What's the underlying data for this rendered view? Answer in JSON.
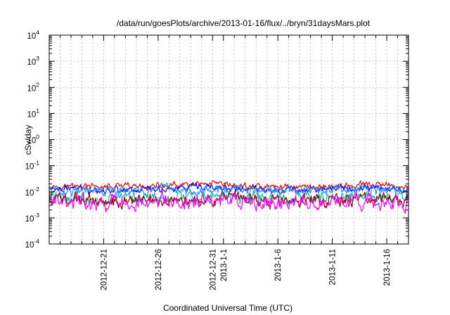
{
  "chart_data": {
    "type": "line",
    "title": "/data/run/goesPlots/archive/2013-01-16/flux/../bryn/31daysMars.plot",
    "xlabel": "Coordinated Universal Time (UTC)",
    "ylabel": "cSv/day",
    "yscale": "log",
    "ylim": [
      0.0001,
      10000
    ],
    "y_ticks": [
      {
        "base": "10",
        "exp": "-4"
      },
      {
        "base": "10",
        "exp": "-3"
      },
      {
        "base": "10",
        "exp": "-2"
      },
      {
        "base": "10",
        "exp": "-1"
      },
      {
        "base": "10",
        "exp": "0"
      },
      {
        "base": "10",
        "exp": "1"
      },
      {
        "base": "10",
        "exp": "2"
      },
      {
        "base": "10",
        "exp": "3"
      },
      {
        "base": "10",
        "exp": "4"
      }
    ],
    "xlim": [
      "2012-12-16",
      "2013-01-18"
    ],
    "x_ticks": [
      {
        "date": "2012-12-21",
        "label": "2012-12-21"
      },
      {
        "date": "2012-12-26",
        "label": "2012-12-26"
      },
      {
        "date": "2012-12-31",
        "label": "2012-12-31"
      },
      {
        "date": "2013-01-01",
        "label": "2013-1-1"
      },
      {
        "date": "2013-01-06",
        "label": "2013-1-6"
      },
      {
        "date": "2013-01-11",
        "label": "2013-1-11"
      },
      {
        "date": "2013-01-16",
        "label": "2013-1-16"
      }
    ],
    "grid": true,
    "legend": "none",
    "series": [
      {
        "color": "#ff0000",
        "typical": 0.016,
        "spread": 0.2,
        "dates": [
          "2012-12-16",
          "2012-12-21",
          "2012-12-26",
          "2012-12-31",
          "2013-01-05",
          "2013-01-10",
          "2013-01-15",
          "2013-01-18"
        ],
        "values": [
          0.017,
          0.015,
          0.016,
          0.018,
          0.015,
          0.016,
          0.018,
          0.015
        ]
      },
      {
        "color": "#0000ff",
        "typical": 0.013,
        "spread": 0.22,
        "dates": [
          "2012-12-16",
          "2012-12-21",
          "2012-12-26",
          "2012-12-31",
          "2013-01-05",
          "2013-01-10",
          "2013-01-15",
          "2013-01-18"
        ],
        "values": [
          0.014,
          0.012,
          0.013,
          0.014,
          0.012,
          0.013,
          0.014,
          0.012
        ]
      },
      {
        "color": "#1e90ff",
        "typical": 0.011,
        "spread": 0.28,
        "dates": [
          "2012-12-16",
          "2012-12-21",
          "2012-12-26",
          "2012-12-31",
          "2013-01-05",
          "2013-01-10",
          "2013-01-15",
          "2013-01-18"
        ],
        "values": [
          0.012,
          0.01,
          0.011,
          0.012,
          0.01,
          0.011,
          0.012,
          0.01
        ]
      },
      {
        "color": "#20b2aa",
        "typical": 0.006,
        "spread": 0.35,
        "dates": [
          "2012-12-16",
          "2012-12-21",
          "2012-12-26",
          "2012-12-31",
          "2013-01-05",
          "2013-01-10",
          "2013-01-15",
          "2013-01-18"
        ],
        "values": [
          0.0065,
          0.0055,
          0.006,
          0.0065,
          0.0055,
          0.006,
          0.0065,
          0.0055
        ]
      },
      {
        "color": "#8b0000",
        "typical": 0.005,
        "spread": 0.35,
        "dates": [
          "2012-12-16",
          "2012-12-21",
          "2012-12-26",
          "2012-12-31",
          "2013-01-05",
          "2013-01-10",
          "2013-01-15",
          "2013-01-18"
        ],
        "values": [
          0.0055,
          0.0045,
          0.005,
          0.0055,
          0.0045,
          0.005,
          0.0055,
          0.0045
        ]
      },
      {
        "color": "#ff00ff",
        "typical": 0.004,
        "spread": 0.45,
        "dates": [
          "2012-12-16",
          "2012-12-21",
          "2012-12-26",
          "2012-12-31",
          "2013-01-05",
          "2013-01-10",
          "2013-01-15",
          "2013-01-18"
        ],
        "values": [
          0.0042,
          0.0035,
          0.0038,
          0.0042,
          0.0035,
          0.0038,
          0.0042,
          0.0033
        ]
      }
    ]
  }
}
